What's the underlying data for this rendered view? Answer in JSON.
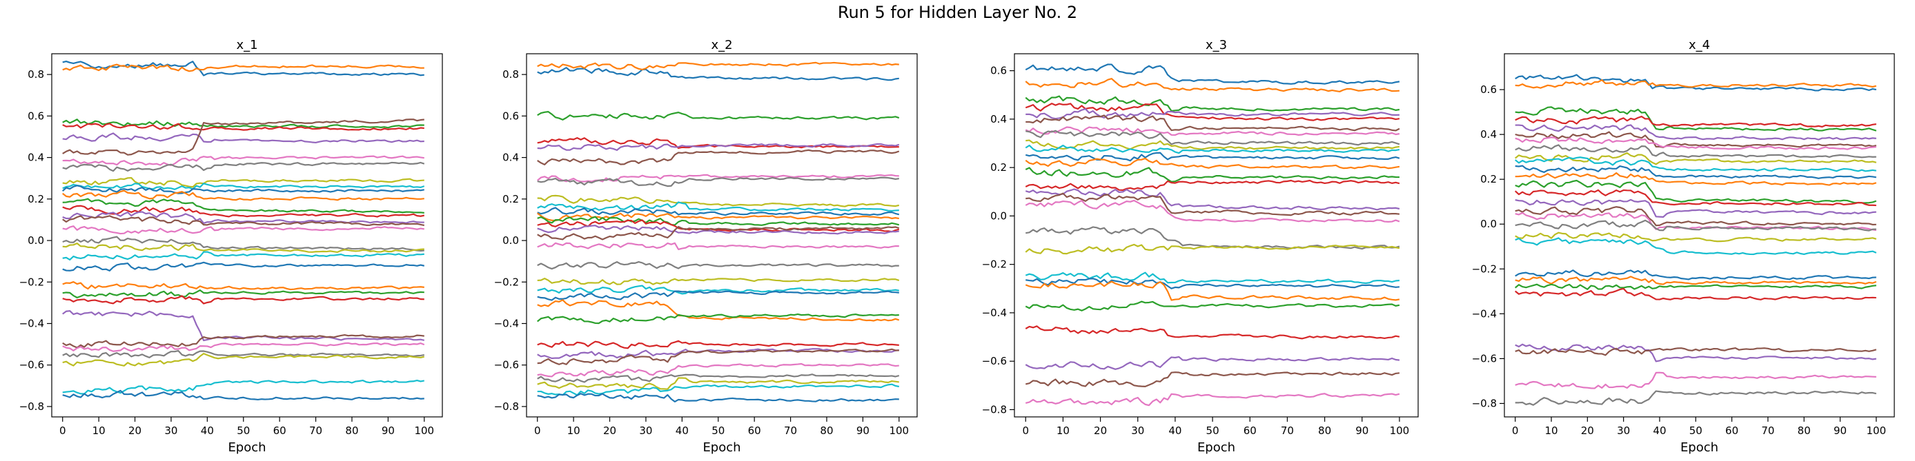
{
  "figure_title": "Run 5 for Hidden Layer No. 2",
  "palette": [
    "#1f77b4",
    "#ff7f0e",
    "#2ca02c",
    "#d62728",
    "#9467bd",
    "#8c564b",
    "#e377c2",
    "#7f7f7f",
    "#bcbd22",
    "#17becf"
  ],
  "chart_data": [
    {
      "type": "line",
      "title": "x_1",
      "xlabel": "Epoch",
      "ylabel": "",
      "xlim": [
        -3,
        105
      ],
      "ylim": [
        -0.85,
        0.9
      ],
      "xticks": [
        0,
        10,
        20,
        30,
        40,
        50,
        60,
        70,
        80,
        90,
        100
      ],
      "yticks": [
        -0.8,
        -0.6,
        -0.4,
        -0.2,
        0.0,
        0.2,
        0.4,
        0.6,
        0.8
      ],
      "ytick_labels": [
        "−0.8",
        "−0.6",
        "−0.4",
        "−0.2",
        "0.0",
        "0.2",
        "0.4",
        "0.6",
        "0.8"
      ],
      "grid": false,
      "series": [
        {
          "start": 0.85,
          "end": 0.8
        },
        {
          "start": 0.83,
          "end": 0.84
        },
        {
          "start": 0.57,
          "end": 0.55
        },
        {
          "start": 0.55,
          "end": 0.54
        },
        {
          "start": 0.5,
          "end": 0.48
        },
        {
          "start": 0.42,
          "end": 0.58
        },
        {
          "start": 0.38,
          "end": 0.4
        },
        {
          "start": 0.35,
          "end": 0.37
        },
        {
          "start": 0.28,
          "end": 0.29
        },
        {
          "start": 0.26,
          "end": 0.26
        },
        {
          "start": 0.25,
          "end": 0.24
        },
        {
          "start": 0.22,
          "end": 0.2
        },
        {
          "start": 0.18,
          "end": 0.14
        },
        {
          "start": 0.15,
          "end": 0.12
        },
        {
          "start": 0.12,
          "end": 0.09
        },
        {
          "start": 0.1,
          "end": 0.08
        },
        {
          "start": 0.05,
          "end": 0.06
        },
        {
          "start": 0.0,
          "end": -0.04
        },
        {
          "start": -0.03,
          "end": -0.05
        },
        {
          "start": -0.08,
          "end": -0.07
        },
        {
          "start": -0.13,
          "end": -0.12
        },
        {
          "start": -0.22,
          "end": -0.23
        },
        {
          "start": -0.26,
          "end": -0.25
        },
        {
          "start": -0.28,
          "end": -0.28
        },
        {
          "start": -0.35,
          "end": -0.48
        },
        {
          "start": -0.5,
          "end": -0.46
        },
        {
          "start": -0.52,
          "end": -0.5
        },
        {
          "start": -0.55,
          "end": -0.55
        },
        {
          "start": -0.59,
          "end": -0.56
        },
        {
          "start": -0.72,
          "end": -0.68
        },
        {
          "start": -0.74,
          "end": -0.76
        }
      ]
    },
    {
      "type": "line",
      "title": "x_2",
      "xlabel": "Epoch",
      "ylabel": "",
      "xlim": [
        -3,
        105
      ],
      "ylim": [
        -0.85,
        0.9
      ],
      "xticks": [
        0,
        10,
        20,
        30,
        40,
        50,
        60,
        70,
        80,
        90,
        100
      ],
      "yticks": [
        -0.8,
        -0.6,
        -0.4,
        -0.2,
        0.0,
        0.2,
        0.4,
        0.6,
        0.8
      ],
      "ytick_labels": [
        "−0.8",
        "−0.6",
        "−0.4",
        "−0.2",
        "0.0",
        "0.2",
        "0.4",
        "0.6",
        "0.8"
      ],
      "grid": false,
      "series": [
        {
          "start": 0.82,
          "end": 0.78
        },
        {
          "start": 0.84,
          "end": 0.85
        },
        {
          "start": 0.6,
          "end": 0.59
        },
        {
          "start": 0.48,
          "end": 0.45
        },
        {
          "start": 0.45,
          "end": 0.46
        },
        {
          "start": 0.38,
          "end": 0.43
        },
        {
          "start": 0.3,
          "end": 0.31
        },
        {
          "start": 0.28,
          "end": 0.3
        },
        {
          "start": 0.2,
          "end": 0.17
        },
        {
          "start": 0.16,
          "end": 0.15
        },
        {
          "start": 0.14,
          "end": 0.13
        },
        {
          "start": 0.12,
          "end": 0.11
        },
        {
          "start": 0.1,
          "end": 0.08
        },
        {
          "start": 0.08,
          "end": 0.05
        },
        {
          "start": 0.06,
          "end": 0.04
        },
        {
          "start": 0.02,
          "end": 0.06
        },
        {
          "start": -0.02,
          "end": -0.03
        },
        {
          "start": -0.12,
          "end": -0.12
        },
        {
          "start": -0.2,
          "end": -0.19
        },
        {
          "start": -0.24,
          "end": -0.24
        },
        {
          "start": -0.27,
          "end": -0.25
        },
        {
          "start": -0.3,
          "end": -0.38
        },
        {
          "start": -0.38,
          "end": -0.36
        },
        {
          "start": -0.5,
          "end": -0.5
        },
        {
          "start": -0.55,
          "end": -0.53
        },
        {
          "start": -0.58,
          "end": -0.53
        },
        {
          "start": -0.64,
          "end": -0.6
        },
        {
          "start": -0.67,
          "end": -0.65
        },
        {
          "start": -0.7,
          "end": -0.68
        },
        {
          "start": -0.73,
          "end": -0.7
        },
        {
          "start": -0.75,
          "end": -0.77
        }
      ]
    },
    {
      "type": "line",
      "title": "x_3",
      "xlabel": "Epoch",
      "ylabel": "",
      "xlim": [
        -3,
        105
      ],
      "ylim": [
        -0.83,
        0.67
      ],
      "xticks": [
        0,
        10,
        20,
        30,
        40,
        50,
        60,
        70,
        80,
        90,
        100
      ],
      "yticks": [
        -0.8,
        -0.6,
        -0.4,
        -0.2,
        0.0,
        0.2,
        0.4,
        0.6
      ],
      "ytick_labels": [
        "−0.8",
        "−0.6",
        "−0.4",
        "−0.2",
        "0.0",
        "0.2",
        "0.4",
        "0.6"
      ],
      "grid": false,
      "series": [
        {
          "start": 0.61,
          "end": 0.55
        },
        {
          "start": 0.55,
          "end": 0.52
        },
        {
          "start": 0.48,
          "end": 0.44
        },
        {
          "start": 0.45,
          "end": 0.4
        },
        {
          "start": 0.42,
          "end": 0.42
        },
        {
          "start": 0.4,
          "end": 0.36
        },
        {
          "start": 0.36,
          "end": 0.34
        },
        {
          "start": 0.34,
          "end": 0.3
        },
        {
          "start": 0.3,
          "end": 0.28
        },
        {
          "start": 0.28,
          "end": 0.27
        },
        {
          "start": 0.25,
          "end": 0.24
        },
        {
          "start": 0.22,
          "end": 0.2
        },
        {
          "start": 0.18,
          "end": 0.16
        },
        {
          "start": 0.12,
          "end": 0.14
        },
        {
          "start": 0.1,
          "end": 0.03
        },
        {
          "start": 0.08,
          "end": 0.01
        },
        {
          "start": 0.05,
          "end": -0.02
        },
        {
          "start": -0.06,
          "end": -0.13
        },
        {
          "start": -0.14,
          "end": -0.13
        },
        {
          "start": -0.25,
          "end": -0.27
        },
        {
          "start": -0.27,
          "end": -0.29
        },
        {
          "start": -0.28,
          "end": -0.34
        },
        {
          "start": -0.37,
          "end": -0.37
        },
        {
          "start": -0.47,
          "end": -0.5
        },
        {
          "start": -0.62,
          "end": -0.59
        },
        {
          "start": -0.69,
          "end": -0.65
        },
        {
          "start": -0.77,
          "end": -0.74
        }
      ]
    },
    {
      "type": "line",
      "title": "x_4",
      "xlabel": "Epoch",
      "ylabel": "",
      "xlim": [
        -3,
        105
      ],
      "ylim": [
        -0.86,
        0.76
      ],
      "xticks": [
        0,
        10,
        20,
        30,
        40,
        50,
        60,
        70,
        80,
        90,
        100
      ],
      "yticks": [
        -0.8,
        -0.6,
        -0.4,
        -0.2,
        0.0,
        0.2,
        0.4,
        0.6
      ],
      "ytick_labels": [
        "−0.8",
        "−0.6",
        "−0.4",
        "−0.2",
        "0.0",
        "0.2",
        "0.4",
        "0.6"
      ],
      "grid": false,
      "series": [
        {
          "start": 0.65,
          "end": 0.6
        },
        {
          "start": 0.63,
          "end": 0.62
        },
        {
          "start": 0.51,
          "end": 0.42
        },
        {
          "start": 0.46,
          "end": 0.44
        },
        {
          "start": 0.43,
          "end": 0.38
        },
        {
          "start": 0.4,
          "end": 0.35
        },
        {
          "start": 0.38,
          "end": 0.34
        },
        {
          "start": 0.34,
          "end": 0.3
        },
        {
          "start": 0.3,
          "end": 0.28
        },
        {
          "start": 0.28,
          "end": 0.24
        },
        {
          "start": 0.25,
          "end": 0.21
        },
        {
          "start": 0.22,
          "end": 0.18
        },
        {
          "start": 0.18,
          "end": 0.1
        },
        {
          "start": 0.14,
          "end": 0.09
        },
        {
          "start": 0.1,
          "end": 0.05
        },
        {
          "start": 0.06,
          "end": 0.0
        },
        {
          "start": 0.04,
          "end": -0.02
        },
        {
          "start": 0.0,
          "end": -0.02
        },
        {
          "start": -0.05,
          "end": -0.07
        },
        {
          "start": -0.08,
          "end": -0.13
        },
        {
          "start": -0.22,
          "end": -0.24
        },
        {
          "start": -0.25,
          "end": -0.26
        },
        {
          "start": -0.28,
          "end": -0.28
        },
        {
          "start": -0.31,
          "end": -0.33
        },
        {
          "start": -0.55,
          "end": -0.6
        },
        {
          "start": -0.57,
          "end": -0.56
        },
        {
          "start": -0.72,
          "end": -0.68
        },
        {
          "start": -0.79,
          "end": -0.75
        }
      ]
    }
  ]
}
